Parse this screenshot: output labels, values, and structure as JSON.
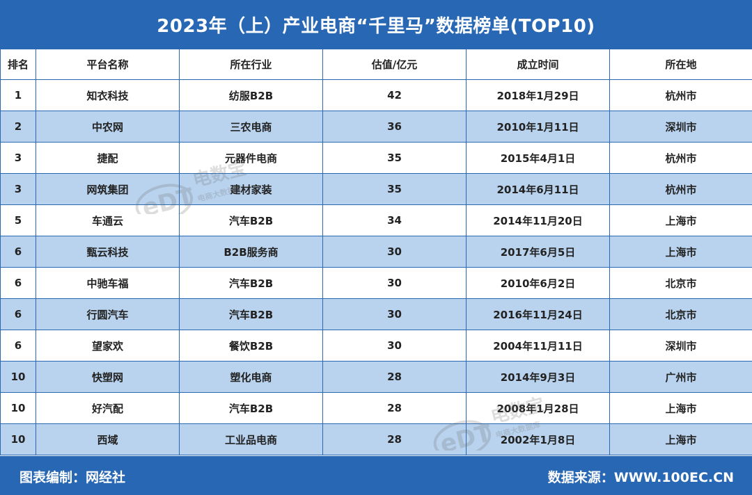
{
  "title": "2023年（上）产业电商“千里马”数据榜单(TOP10)",
  "columns": [
    "排名",
    "平台名称",
    "所在行业",
    "估值/亿元",
    "成立时间",
    "所在地"
  ],
  "rows": [
    {
      "rank": "1",
      "name": "知衣科技",
      "industry": "纺服B2B",
      "valuation": "42",
      "founded": "2018年1月29日",
      "location": "杭州市"
    },
    {
      "rank": "2",
      "name": "中农网",
      "industry": "三农电商",
      "valuation": "36",
      "founded": "2010年1月11日",
      "location": "深圳市"
    },
    {
      "rank": "3",
      "name": "捷配",
      "industry": "元器件电商",
      "valuation": "35",
      "founded": "2015年4月1日",
      "location": "杭州市"
    },
    {
      "rank": "3",
      "name": "网筑集团",
      "industry": "建材家装",
      "valuation": "35",
      "founded": "2014年6月11日",
      "location": "杭州市"
    },
    {
      "rank": "5",
      "name": "车通云",
      "industry": "汽车B2B",
      "valuation": "34",
      "founded": "2014年11月20日",
      "location": "上海市"
    },
    {
      "rank": "6",
      "name": "甄云科技",
      "industry": "B2B服务商",
      "valuation": "30",
      "founded": "2017年6月5日",
      "location": "上海市"
    },
    {
      "rank": "6",
      "name": "中驰车福",
      "industry": "汽车B2B",
      "valuation": "30",
      "founded": "2010年6月2日",
      "location": "北京市"
    },
    {
      "rank": "6",
      "name": "行圆汽车",
      "industry": "汽车B2B",
      "valuation": "30",
      "founded": "2016年11月24日",
      "location": "北京市"
    },
    {
      "rank": "6",
      "name": "望家欢",
      "industry": "餐饮B2B",
      "valuation": "30",
      "founded": "2004年11月11日",
      "location": "深圳市"
    },
    {
      "rank": "10",
      "name": "快塑网",
      "industry": "塑化电商",
      "valuation": "28",
      "founded": "2014年9月3日",
      "location": "广州市"
    },
    {
      "rank": "10",
      "name": "好汽配",
      "industry": "汽车B2B",
      "valuation": "28",
      "founded": "2008年1月28日",
      "location": "上海市"
    },
    {
      "rank": "10",
      "name": "西域",
      "industry": "工业品电商",
      "valuation": "28",
      "founded": "2002年1月8日",
      "location": "上海市"
    }
  ],
  "footer": {
    "compiled_by": "图表编制：网经社",
    "source": "数据来源：WWW.100EC.CN"
  },
  "watermark": {
    "logo": "eDT",
    "brand": "电数宝",
    "tagline": "电商大数据库"
  },
  "colors": {
    "header_blue": "#2767b4",
    "row_alt": "#b9d3ee",
    "border": "#2767b4"
  }
}
